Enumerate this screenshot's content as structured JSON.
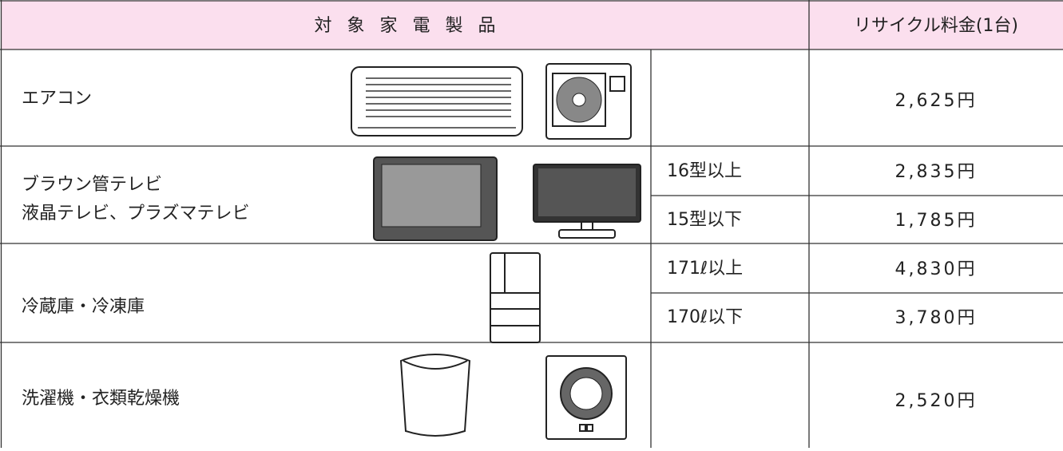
{
  "header": {
    "product": "対 象 家 電 製 品",
    "fee": "リサイクル料金(1台)"
  },
  "rows": [
    {
      "name": [
        "エアコン"
      ],
      "items": [
        {
          "price": "2,625円"
        }
      ]
    },
    {
      "name": [
        "ブラウン管テレビ",
        "液晶テレビ、プラズマテレビ"
      ],
      "items": [
        {
          "size": "16型以上",
          "price": "2,835円"
        },
        {
          "size": "15型以下",
          "price": "1,785円"
        }
      ]
    },
    {
      "name": [
        "冷蔵庫・冷凍庫"
      ],
      "items": [
        {
          "size": "171ℓ以上",
          "price": "4,830円"
        },
        {
          "size": "170ℓ以下",
          "price": "3,780円"
        }
      ]
    },
    {
      "name": [
        "洗濯機・衣類乾燥機"
      ],
      "items": [
        {
          "price": "2,520円"
        }
      ]
    }
  ]
}
